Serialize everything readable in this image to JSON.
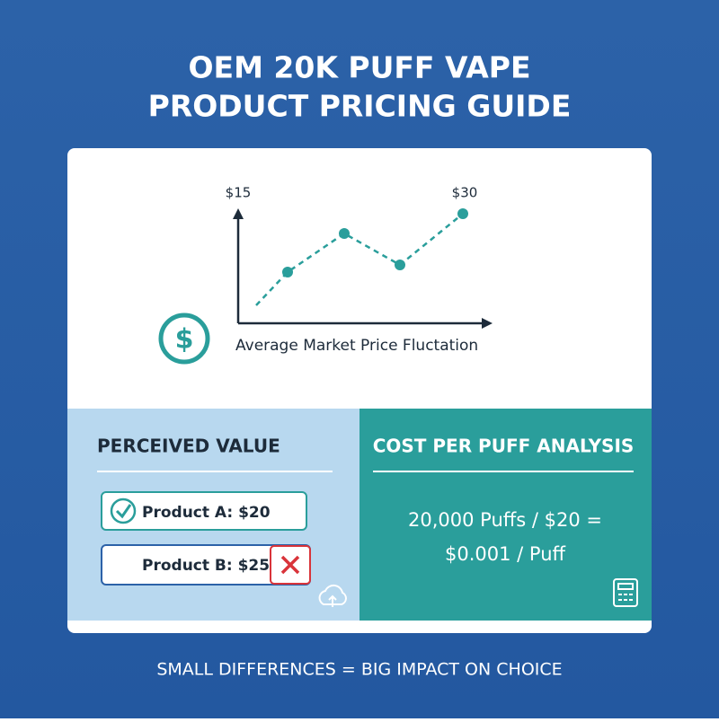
{
  "header": {
    "title_lines": [
      "OEM 20K PUFF VAPE",
      "PRODUCT PRICING GUIDE"
    ]
  },
  "price_chart": {
    "labels": [
      "$15",
      "$30"
    ],
    "caption": "Average Market Price Fluctation"
  },
  "perceived_value": {
    "heading": "PERCEIVED VALUE",
    "items": [
      "Product A: $20",
      "Product B: $25"
    ]
  },
  "cost_analysis": {
    "heading": "COST PER PUFF ANALYSIS",
    "lines": [
      "20,000 Puffs / $20 =",
      "$0.001 / Puff"
    ]
  },
  "footer": {
    "text": "SMALL DIFFERENCES = BIG IMPACT ON CHOICE"
  }
}
